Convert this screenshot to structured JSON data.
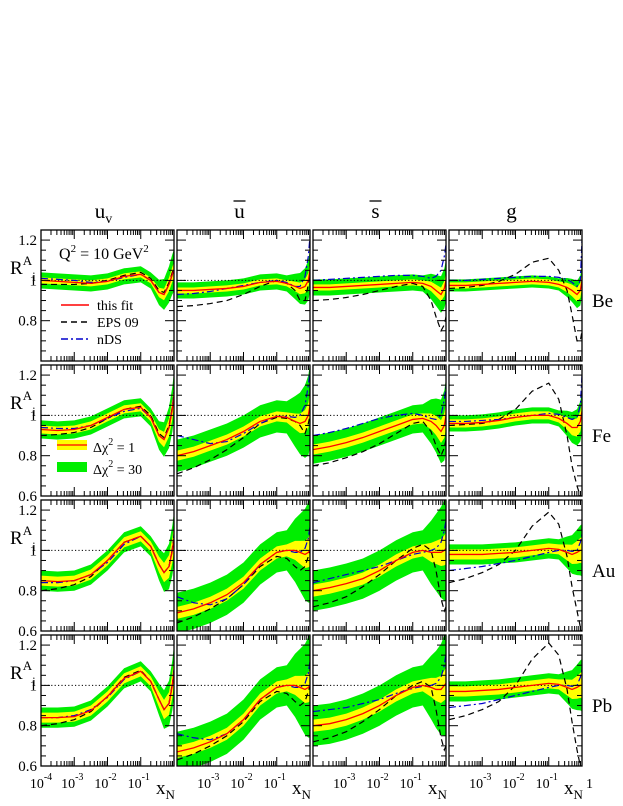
{
  "chart_data": {
    "type": "line",
    "columns": [
      {
        "key": "uv",
        "title_main": "u",
        "title_sub": "v",
        "title_bar": false
      },
      {
        "key": "ubar",
        "title_main": "u",
        "title_sub": "",
        "title_bar": true
      },
      {
        "key": "sbar",
        "title_main": "s",
        "title_sub": "",
        "title_bar": true
      },
      {
        "key": "g",
        "title_main": "g",
        "title_sub": "",
        "title_bar": false
      }
    ],
    "rows": [
      {
        "nucleus": "Be",
        "ylabel_main": "R",
        "ylabel_sub": "i",
        "ylabel_sup": "A"
      },
      {
        "nucleus": "Fe",
        "ylabel_main": "R",
        "ylabel_sub": "i",
        "ylabel_sup": "A"
      },
      {
        "nucleus": "Au",
        "ylabel_main": "R",
        "ylabel_sub": "i",
        "ylabel_sup": "A"
      },
      {
        "nucleus": "Pb",
        "ylabel_main": "R",
        "ylabel_sub": "i",
        "ylabel_sup": "A"
      }
    ],
    "ylim": [
      0.6,
      1.25
    ],
    "y_ticks": [
      "0.6",
      "0.8",
      "1",
      "1.2"
    ],
    "xlim_log10": [
      -4,
      0
    ],
    "x_tick_labels_first_col": [
      {
        "base": "10",
        "exp": "-4",
        "at": -4
      },
      {
        "base": "10",
        "exp": "-3",
        "at": -3
      },
      {
        "base": "10",
        "exp": "-2",
        "at": -2
      },
      {
        "base": "10",
        "exp": "-1",
        "at": -1
      }
    ],
    "x_tick_labels_other_cols": [
      {
        "base": "10",
        "exp": "-3",
        "at": -3
      },
      {
        "base": "10",
        "exp": "-2",
        "at": -2
      },
      {
        "base": "10",
        "exp": "-1",
        "at": -1
      }
    ],
    "x_tick_label_last_col_end": {
      "text": "1",
      "at": 0
    },
    "xlabel_main": "x",
    "xlabel_sub": "N",
    "annotation": {
      "main": "Q",
      "sup": "2",
      "rest": " = 10 GeV",
      "rest_sup": "2"
    },
    "reference_line_y": 1,
    "legend_lines": [
      {
        "label": "this fit",
        "color": "#ff0000",
        "style": "solid"
      },
      {
        "label": "EPS 09",
        "color": "#000000",
        "style": "dashed"
      },
      {
        "label": "nDS",
        "color": "#0000cc",
        "style": "dashdot"
      }
    ],
    "legend_bands": [
      {
        "label_pre": "Δχ",
        "label_sup": "2",
        "label_post": " = 1",
        "color": "#ffff00",
        "edge": "#ff0000"
      },
      {
        "label_pre": "Δχ",
        "label_sup": "2",
        "label_post": " = 30",
        "color": "#00ee00",
        "edge": "#00ee00"
      }
    ],
    "x": [
      -4,
      -3.5,
      -3,
      -2.5,
      -2,
      -1.5,
      -1,
      -0.7,
      -0.45,
      -0.3,
      -0.15,
      -0.05,
      0
    ],
    "panels": {
      "Be": {
        "uv": {
          "fit": [
            1.0,
            0.995,
            0.99,
            0.985,
            0.995,
            1.02,
            1.03,
            1.0,
            0.94,
            0.93,
            0.98,
            1.03,
            1.05
          ],
          "yl": 0.015,
          "g30": 0.04,
          "eps": [
            0.98,
            0.98,
            0.98,
            0.985,
            1.0,
            1.025,
            1.04,
            1.01,
            0.95,
            0.94,
            0.99,
            1.04,
            1.06
          ],
          "nds": [
            1.01,
            1.005,
            1.0,
            0.99,
            0.995,
            1.015,
            1.03,
            1.0,
            0.94,
            0.93,
            0.98,
            1.03,
            1.05
          ]
        },
        "ubar": {
          "fit": [
            0.95,
            0.95,
            0.955,
            0.96,
            0.97,
            0.99,
            0.995,
            0.985,
            0.97,
            0.96,
            0.97,
            1.0,
            1.05
          ],
          "yl": 0.015,
          "g30": 0.04,
          "eps": [
            0.87,
            0.875,
            0.885,
            0.9,
            0.93,
            0.97,
            1.0,
            0.985,
            0.95,
            0.9,
            0.9,
            0.98,
            1.05
          ],
          "nds": [
            0.93,
            0.935,
            0.945,
            0.96,
            0.975,
            0.99,
            1.0,
            0.99,
            0.97,
            0.97,
            1.02,
            1.12,
            1.22
          ]
        },
        "sbar": {
          "fit": [
            0.965,
            0.965,
            0.97,
            0.975,
            0.98,
            0.985,
            0.99,
            0.985,
            0.97,
            0.95,
            0.93,
            0.96,
            1.0
          ],
          "yl": 0.015,
          "g30": 0.04,
          "eps": [
            0.9,
            0.905,
            0.915,
            0.93,
            0.95,
            0.97,
            0.985,
            0.97,
            0.9,
            0.82,
            0.75,
            0.78,
            0.82
          ],
          "nds": [
            1.0,
            1.005,
            1.01,
            1.015,
            1.02,
            1.025,
            1.025,
            1.02,
            1.01,
            1.02,
            1.05,
            1.12,
            1.18
          ]
        },
        "g": {
          "fit": [
            0.975,
            0.975,
            0.98,
            0.985,
            0.99,
            0.995,
            0.99,
            0.98,
            0.965,
            0.95,
            0.93,
            0.95,
            1.0
          ],
          "yl": 0.015,
          "g30": 0.03,
          "eps": [
            0.96,
            0.965,
            0.975,
            0.995,
            1.03,
            1.09,
            1.11,
            1.05,
            0.95,
            0.83,
            0.7,
            0.7,
            0.75
          ],
          "nds": [
            1.0,
            1.0,
            1.005,
            1.01,
            1.015,
            1.02,
            1.02,
            1.015,
            1.005,
            0.99,
            0.97,
            1.0,
            1.2
          ]
        }
      },
      "Fe": {
        "uv": {
          "fit": [
            0.93,
            0.925,
            0.93,
            0.95,
            0.99,
            1.03,
            1.04,
            0.99,
            0.9,
            0.88,
            0.94,
            1.03,
            1.1
          ],
          "yl": 0.02,
          "g30": 0.045,
          "eps": [
            0.9,
            0.905,
            0.915,
            0.94,
            0.985,
            1.03,
            1.045,
            1.0,
            0.91,
            0.89,
            0.95,
            1.04,
            1.1
          ],
          "nds": [
            0.94,
            0.935,
            0.935,
            0.95,
            0.985,
            1.02,
            1.035,
            0.99,
            0.9,
            0.88,
            0.94,
            1.04,
            1.12
          ]
        },
        "ubar": {
          "fit": [
            0.8,
            0.82,
            0.85,
            0.88,
            0.92,
            0.97,
            0.995,
            0.99,
            0.97,
            0.96,
            0.97,
            1.0,
            1.05
          ],
          "yl": 0.025,
          "g30": 0.08,
          "eps": [
            0.71,
            0.74,
            0.78,
            0.83,
            0.89,
            0.96,
            0.99,
            0.985,
            0.97,
            0.95,
            0.91,
            0.96,
            1.0
          ],
          "nds": [
            0.9,
            0.88,
            0.86,
            0.87,
            0.91,
            0.96,
            0.995,
            0.995,
            0.99,
            1.0,
            1.05,
            1.15,
            1.22
          ]
        },
        "sbar": {
          "fit": [
            0.83,
            0.845,
            0.865,
            0.89,
            0.92,
            0.95,
            0.98,
            0.985,
            0.97,
            0.95,
            0.92,
            0.95,
            1.0
          ],
          "yl": 0.025,
          "g30": 0.07,
          "eps": [
            0.75,
            0.765,
            0.79,
            0.82,
            0.86,
            0.91,
            0.96,
            0.97,
            0.92,
            0.85,
            0.8,
            0.84,
            0.88
          ],
          "nds": [
            0.9,
            0.915,
            0.935,
            0.96,
            0.985,
            1.0,
            1.01,
            1.0,
            0.985,
            0.98,
            1.0,
            1.08,
            1.15
          ]
        },
        "g": {
          "fit": [
            0.96,
            0.96,
            0.965,
            0.975,
            0.99,
            1.0,
            1.0,
            0.985,
            0.96,
            0.94,
            0.94,
            0.97,
            1.02
          ],
          "yl": 0.02,
          "g30": 0.04,
          "eps": [
            0.95,
            0.955,
            0.96,
            0.98,
            1.03,
            1.12,
            1.16,
            1.08,
            0.9,
            0.75,
            0.65,
            0.6,
            0.6
          ],
          "nds": [
            0.97,
            0.97,
            0.975,
            0.98,
            0.99,
            1.0,
            1.01,
            1.005,
            0.99,
            0.98,
            0.99,
            1.05,
            1.2
          ]
        }
      },
      "Au": {
        "uv": {
          "fit": [
            0.85,
            0.845,
            0.85,
            0.88,
            0.95,
            1.04,
            1.07,
            1.02,
            0.93,
            0.89,
            0.92,
            1.0,
            1.06
          ],
          "yl": 0.025,
          "g30": 0.05,
          "eps": [
            0.8,
            0.81,
            0.83,
            0.87,
            0.95,
            1.04,
            1.07,
            1.02,
            0.93,
            0.89,
            0.92,
            1.0,
            1.06
          ],
          "nds": [
            0.84,
            0.84,
            0.85,
            0.88,
            0.94,
            1.03,
            1.07,
            1.02,
            0.93,
            0.89,
            0.92,
            1.01,
            1.08
          ]
        },
        "ubar": {
          "fit": [
            0.69,
            0.71,
            0.74,
            0.78,
            0.84,
            0.93,
            0.99,
            1.0,
            1.0,
            0.99,
            0.98,
            0.99,
            1.0
          ],
          "yl": 0.03,
          "g30": 0.1,
          "eps": [
            0.64,
            0.67,
            0.71,
            0.76,
            0.83,
            0.92,
            0.97,
            0.96,
            0.92,
            0.9,
            0.92,
            0.97,
            1.0
          ],
          "nds": [
            0.77,
            0.74,
            0.73,
            0.76,
            0.83,
            0.93,
            0.99,
            1.0,
            0.99,
            0.99,
            1.01,
            1.06,
            1.12
          ]
        },
        "sbar": {
          "fit": [
            0.8,
            0.815,
            0.835,
            0.86,
            0.9,
            0.95,
            0.99,
            1.0,
            0.99,
            0.99,
            0.99,
            1.0,
            1.01
          ],
          "yl": 0.03,
          "g30": 0.1,
          "eps": [
            0.72,
            0.74,
            0.77,
            0.82,
            0.88,
            0.95,
            1.01,
            1.03,
            1.0,
            0.9,
            0.76,
            0.7,
            0.72
          ],
          "nds": [
            0.84,
            0.86,
            0.88,
            0.9,
            0.92,
            0.95,
            0.98,
            0.99,
            1.0,
            1.01,
            1.04,
            1.1,
            1.15
          ]
        },
        "g": {
          "fit": [
            0.98,
            0.98,
            0.98,
            0.985,
            0.99,
            1.0,
            1.01,
            1.005,
            0.99,
            0.98,
            0.99,
            1.0,
            1.0
          ],
          "yl": 0.025,
          "g30": 0.05,
          "eps": [
            0.84,
            0.86,
            0.89,
            0.93,
            1.0,
            1.12,
            1.19,
            1.13,
            0.97,
            0.82,
            0.7,
            0.62,
            0.6
          ],
          "nds": [
            0.9,
            0.91,
            0.92,
            0.935,
            0.95,
            0.97,
            0.99,
            1.0,
            1.0,
            0.995,
            1.0,
            1.04,
            1.08
          ]
        }
      },
      "Pb": {
        "uv": {
          "fit": [
            0.84,
            0.84,
            0.845,
            0.875,
            0.945,
            1.035,
            1.07,
            1.02,
            0.93,
            0.88,
            0.91,
            1.0,
            1.07
          ],
          "yl": 0.025,
          "g30": 0.05,
          "eps": [
            0.8,
            0.81,
            0.83,
            0.87,
            0.945,
            1.04,
            1.075,
            1.02,
            0.93,
            0.88,
            0.91,
            1.0,
            1.07
          ],
          "nds": [
            0.84,
            0.84,
            0.85,
            0.88,
            0.94,
            1.03,
            1.07,
            1.02,
            0.93,
            0.88,
            0.91,
            1.01,
            1.08
          ]
        },
        "ubar": {
          "fit": [
            0.67,
            0.69,
            0.72,
            0.76,
            0.83,
            0.93,
            0.99,
            1.0,
            1.0,
            0.99,
            0.98,
            0.99,
            1.0
          ],
          "yl": 0.03,
          "g30": 0.1,
          "eps": [
            0.63,
            0.66,
            0.7,
            0.75,
            0.82,
            0.92,
            0.97,
            0.96,
            0.92,
            0.9,
            0.92,
            0.97,
            1.0
          ],
          "nds": [
            0.76,
            0.74,
            0.73,
            0.76,
            0.83,
            0.93,
            0.99,
            1.0,
            0.99,
            0.99,
            1.01,
            1.06,
            1.12
          ]
        },
        "sbar": {
          "fit": [
            0.8,
            0.81,
            0.83,
            0.86,
            0.9,
            0.95,
            0.99,
            1.0,
            0.99,
            0.98,
            0.98,
            1.0,
            1.01
          ],
          "yl": 0.03,
          "g30": 0.1,
          "eps": [
            0.72,
            0.74,
            0.77,
            0.82,
            0.88,
            0.95,
            1.0,
            1.02,
            0.99,
            0.88,
            0.74,
            0.68,
            0.7
          ],
          "nds": [
            0.87,
            0.88,
            0.89,
            0.91,
            0.93,
            0.96,
            0.985,
            0.995,
            1.0,
            1.01,
            1.04,
            1.1,
            1.16
          ]
        },
        "g": {
          "fit": [
            0.97,
            0.97,
            0.975,
            0.98,
            0.99,
            1.0,
            1.01,
            1.005,
            0.99,
            0.98,
            0.99,
            1.0,
            1.0
          ],
          "yl": 0.025,
          "g30": 0.05,
          "eps": [
            0.83,
            0.85,
            0.88,
            0.92,
            1.0,
            1.13,
            1.21,
            1.15,
            0.98,
            0.82,
            0.68,
            0.6,
            0.6
          ],
          "nds": [
            0.89,
            0.9,
            0.91,
            0.93,
            0.95,
            0.97,
            0.99,
            1.0,
            1.0,
            0.995,
            1.0,
            1.04,
            1.08
          ]
        }
      }
    }
  }
}
